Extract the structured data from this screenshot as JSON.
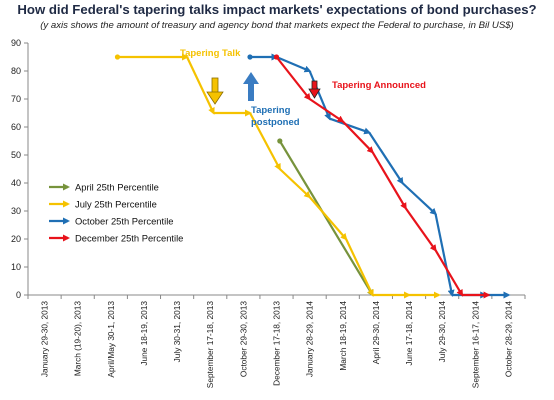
{
  "chart_data": {
    "type": "line",
    "title": "How did Federal's tapering talks impact markets' expectations of bond purchases?",
    "subtitle": "(y axis shows the amount of treasury and agency bond that markets expect the Federal to purchase, in Bil US$)",
    "xlabel": "",
    "ylabel": "",
    "ylim": [
      0,
      90
    ],
    "yticks": [
      0,
      10,
      20,
      30,
      40,
      50,
      60,
      70,
      80,
      90
    ],
    "grid": false,
    "legend_position": "left",
    "categories": [
      "January 29-30, 2013",
      "March (19-20), 2013",
      "April/May 30-1, 2013",
      "June 18-19, 2013",
      "July 30-31, 2013",
      "September 17-18, 2013",
      "October 29-30, 2013",
      "December 17-18, 2013",
      "January 28-29, 2014",
      "March 18-19, 2014",
      "April 29-30, 2014",
      "June 17-18, 2014",
      "July 29-30, 2014",
      "September 16-17, 2014",
      "October 28-29, 2014"
    ],
    "series": [
      {
        "name": "April 25th Percentile",
        "color": "#77933c",
        "points": [
          [
            7.1,
            55
          ],
          [
            9.9,
            0
          ]
        ]
      },
      {
        "name": "July 25th Percentile",
        "color": "#f5c200",
        "points": [
          [
            2.2,
            85
          ],
          [
            4.3,
            85
          ],
          [
            5.1,
            65
          ],
          [
            6.2,
            65
          ],
          [
            7.1,
            45
          ],
          [
            8.0,
            35
          ],
          [
            9.1,
            20
          ],
          [
            9.9,
            0
          ],
          [
            11.0,
            0
          ],
          [
            11.9,
            0
          ]
        ]
      },
      {
        "name": "October 25th Percentile",
        "color": "#1f6fb4",
        "points": [
          [
            6.2,
            85
          ],
          [
            7.0,
            85
          ],
          [
            8.0,
            80
          ],
          [
            8.6,
            63
          ],
          [
            9.8,
            58
          ],
          [
            10.8,
            40
          ],
          [
            11.8,
            29
          ],
          [
            12.3,
            0
          ],
          [
            13.3,
            0
          ],
          [
            14.0,
            0
          ]
        ]
      },
      {
        "name": "December 25th Percentile",
        "color": "#e8131b",
        "points": [
          [
            7.0,
            85
          ],
          [
            8.0,
            70
          ],
          [
            9.0,
            62
          ],
          [
            9.9,
            51
          ],
          [
            10.9,
            31
          ],
          [
            11.8,
            16
          ],
          [
            12.6,
            0
          ],
          [
            13.4,
            0
          ]
        ]
      }
    ],
    "annotations": [
      {
        "text": "Tapering Talk",
        "color": "#f5c200"
      },
      {
        "text": "Tapering",
        "color": "#1f6fb4"
      },
      {
        "text": "postponed",
        "color": "#1f6fb4"
      },
      {
        "text": "Tapering  Announced",
        "color": "#e8131b"
      }
    ]
  }
}
